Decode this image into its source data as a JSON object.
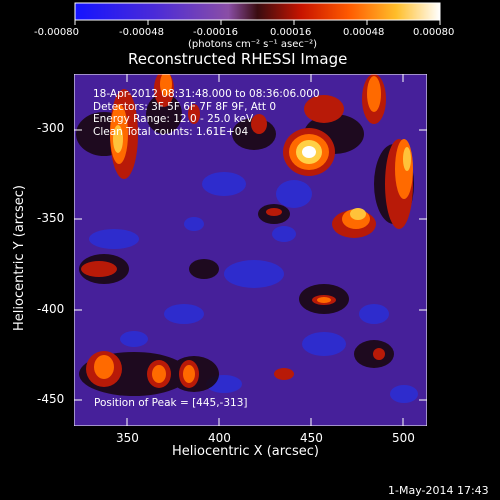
{
  "colorbar": {
    "ticks": [
      "-0.00080",
      "-0.00048",
      "-0.00016",
      "0.00016",
      "0.00048",
      "0.00080"
    ],
    "unit_label": "(photons cm⁻² s⁻¹ asec⁻²)"
  },
  "plot": {
    "title": "Reconstructed RHESSI Image",
    "xlabel": "Heliocentric X (arcsec)",
    "ylabel": "Heliocentric Y (arcsec)",
    "xticks": [
      "350",
      "400",
      "450",
      "500"
    ],
    "yticks": [
      "-300",
      "-350",
      "-400",
      "-450"
    ],
    "info_lines": [
      "18-Apr-2012 08:31:48.000 to 08:36:06.000",
      "Detectors: 3F 5F 6F 7F 8F 9F, Att 0",
      "Energy Range: 12.0 - 25.0 keV",
      "Clean    Total counts: 1.61E+04"
    ],
    "peak_label": "Position of Peak = [445,-313]"
  },
  "footer": {
    "date": "1-May-2014 17:43"
  },
  "colors": {
    "background": "#000000",
    "text": "#ffffff"
  }
}
